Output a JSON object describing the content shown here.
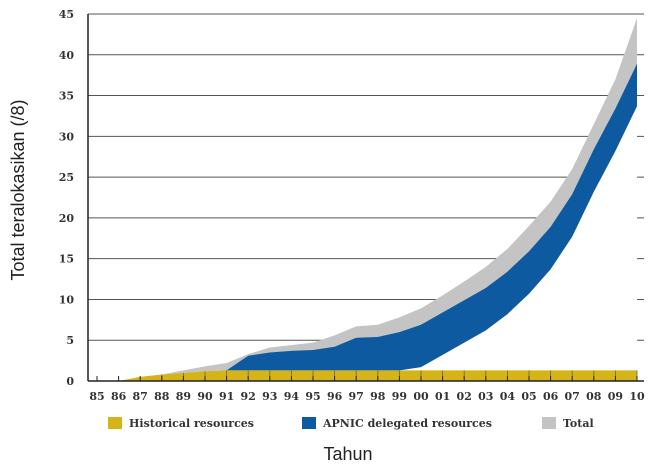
{
  "chart_data": {
    "type": "area",
    "x": [
      "85",
      "86",
      "87",
      "88",
      "89",
      "90",
      "91",
      "92",
      "93",
      "94",
      "95",
      "96",
      "97",
      "98",
      "99",
      "00",
      "01",
      "02",
      "03",
      "04",
      "05",
      "06",
      "07",
      "08",
      "09",
      "10"
    ],
    "xlabel": "Tahun",
    "ylabel": "Total teralokasikan (/8)",
    "ylim": [
      0,
      45
    ],
    "yticks": [
      "0",
      "5",
      "10",
      "15",
      "20",
      "25",
      "30",
      "35",
      "40",
      "45"
    ],
    "grid": true,
    "legend_position": "bottom",
    "series": [
      {
        "name": "Historical resources",
        "color": "#d4b419",
        "values": [
          0,
          0,
          0.5,
          0.8,
          1,
          1.2,
          1.3,
          1.3,
          1.3,
          1.3,
          1.3,
          1.3,
          1.3,
          1.3,
          1.3,
          1.3,
          1.3,
          1.3,
          1.3,
          1.3,
          1.3,
          1.3,
          1.3,
          1.3,
          1.3,
          1.3
        ]
      },
      {
        "name": "APNIC delegated resources",
        "color": "#0e5aa0",
        "values": [
          0,
          0,
          0,
          0,
          0,
          0,
          0,
          0.5,
          0.9,
          1.1,
          1.2,
          1.6,
          2.7,
          2.8,
          3.4,
          4.3,
          5.8,
          7.3,
          8.8,
          10.8,
          13.3,
          16.3,
          20.3,
          25.8,
          30.8,
          36.3
        ]
      },
      {
        "name": "Total",
        "color": "#c4c4c4",
        "values": [
          0,
          0,
          0.5,
          0.8,
          1.3,
          1.8,
          2.2,
          3.3,
          4.1,
          4.4,
          4.7,
          5.6,
          6.7,
          6.9,
          7.8,
          8.9,
          10.5,
          12.2,
          14,
          16.2,
          19,
          22,
          26,
          31.5,
          37,
          44.5
        ]
      }
    ]
  }
}
